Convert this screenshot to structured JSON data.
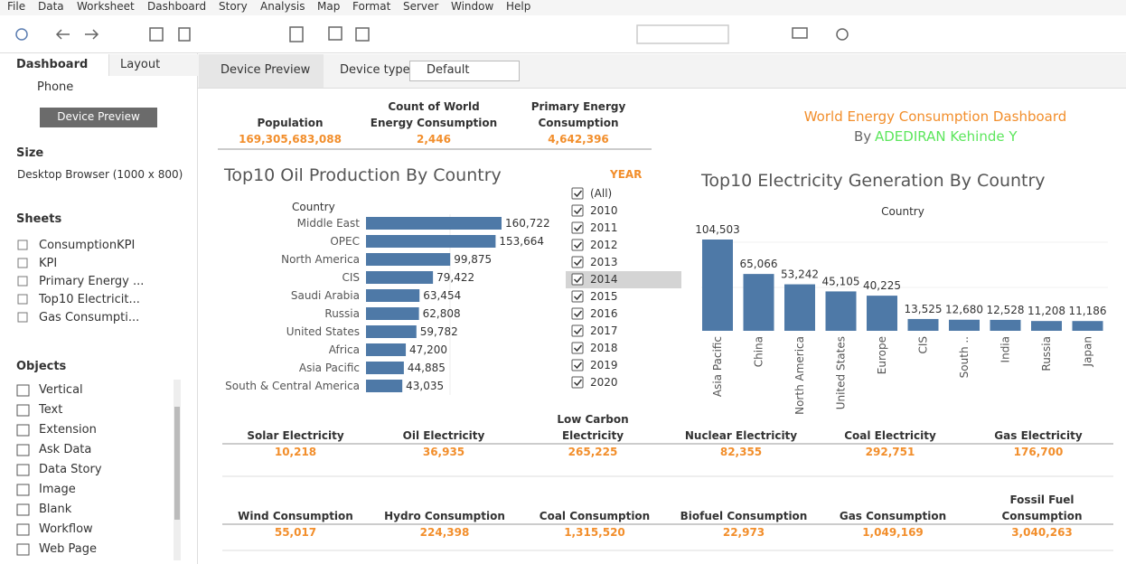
{
  "menu": [
    "File",
    "Data",
    "Worksheet",
    "Dashboard",
    "Story",
    "Analysis",
    "Map",
    "Format",
    "Server",
    "Window",
    "Help"
  ],
  "sidebar": {
    "tabs": [
      "Dashboard",
      "Layout"
    ],
    "device": "Phone",
    "preview_button": "Device Preview",
    "size_title": "Size",
    "size_value": "Desktop Browser (1000 x 800)",
    "sheets_title": "Sheets",
    "sheets": [
      "ConsumptionKPI",
      "KPI",
      "Primary Energy ...",
      "Top10 Electricit...",
      "Gas Consumpti..."
    ],
    "objects_title": "Objects",
    "objects": [
      "Vertical",
      "Text",
      "Extension",
      "Ask Data",
      "Data Story",
      "Image",
      "Blank",
      "Workflow",
      "Web Page"
    ]
  },
  "preview_bar": {
    "tab": "Device Preview",
    "device_type_label": "Device type",
    "device_type_value": "Default"
  },
  "header": {
    "title": "World Energy Consumption Dashboard",
    "by": "By",
    "author": "ADEDIRAN Kehinde Y"
  },
  "kpis_top": [
    {
      "label": "Population",
      "value": "169,305,683,088"
    },
    {
      "label": "Count of World Energy Consumption",
      "value": "2,446"
    },
    {
      "label": "Primary Energy Consumption",
      "value": "4,642,396"
    }
  ],
  "year_filter": {
    "title": "YEAR",
    "items": [
      "(All)",
      "2010",
      "2011",
      "2012",
      "2013",
      "2014",
      "2015",
      "2016",
      "2017",
      "2018",
      "2019",
      "2020"
    ]
  },
  "kpis_electricity": [
    {
      "label": "Solar Electricity",
      "value": "10,218"
    },
    {
      "label": "Oil Electricity",
      "value": "36,935"
    },
    {
      "label": "Low Carbon Electricity",
      "value": "265,225"
    },
    {
      "label": "Nuclear Electricity",
      "value": "82,355"
    },
    {
      "label": "Coal Electricity",
      "value": "292,751"
    },
    {
      "label": "Gas Electricity",
      "value": "176,700"
    }
  ],
  "kpis_consumption": [
    {
      "label": "Wind Consumption",
      "value": "55,017"
    },
    {
      "label": "Hydro Consumption",
      "value": "224,398"
    },
    {
      "label": "Coal Consumption",
      "value": "1,315,520"
    },
    {
      "label": "Biofuel Consumption",
      "value": "22,973"
    },
    {
      "label": "Gas Consumption",
      "value": "1,049,169"
    },
    {
      "label": "Fossil Fuel Consumption",
      "value": "3,040,263"
    }
  ],
  "chart_data": [
    {
      "type": "hbar",
      "title": "Top10 Oil Production By Country",
      "axis_label": "Country",
      "color": "#4e79a7",
      "categories": [
        "Middle East",
        "OPEC",
        "North America",
        "CIS",
        "Saudi Arabia",
        "Russia",
        "United States",
        "Africa",
        "Asia Pacific",
        "South & Central America"
      ],
      "values": [
        160722,
        153664,
        99875,
        79422,
        63454,
        62808,
        59782,
        47200,
        44885,
        43035
      ],
      "value_labels": [
        "160,722",
        "153,664",
        "99,875",
        "79,422",
        "63,454",
        "62,808",
        "59,782",
        "47,200",
        "44,885",
        "43,035"
      ]
    },
    {
      "type": "bar",
      "title": "Top10 Electricity Generation By Country",
      "axis_label": "Country",
      "color": "#4e79a7",
      "categories": [
        "Asia Pacific",
        "China",
        "North America",
        "United States",
        "Europe",
        "CIS",
        "South ..",
        "India",
        "Russia",
        "Japan"
      ],
      "values": [
        104503,
        65066,
        53242,
        45105,
        40225,
        13525,
        12680,
        12528,
        11208,
        11186
      ],
      "value_labels": [
        "104,503",
        "65,066",
        "53,242",
        "45,105",
        "40,225",
        "13,525",
        "12,680",
        "12,528",
        "11,208",
        "11,186"
      ]
    }
  ]
}
